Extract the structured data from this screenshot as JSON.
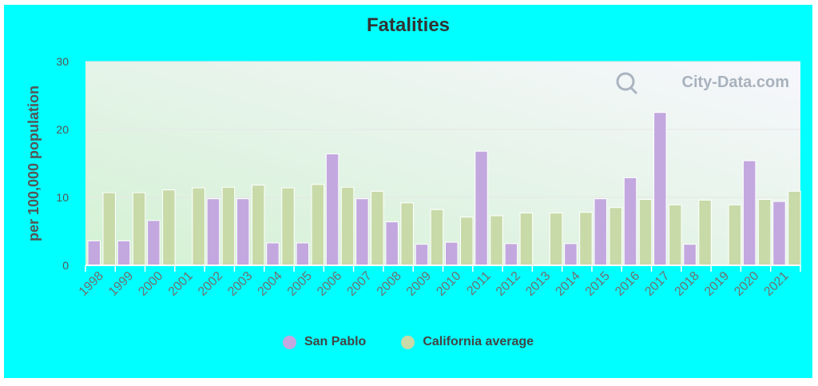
{
  "title": "Fatalities",
  "watermark": "City-Data.com",
  "colors": {
    "san_pablo": "#c3a8df",
    "california": "#c8daa8",
    "frame": "#00ffff"
  },
  "chart_data": {
    "type": "bar",
    "title": "Fatalities",
    "xlabel": "",
    "ylabel": "per 100,000 population",
    "ylim": [
      0,
      30
    ],
    "yticks": [
      0,
      10,
      20,
      30
    ],
    "grid": true,
    "legend_position": "bottom",
    "categories": [
      "1998",
      "1999",
      "2000",
      "2001",
      "2002",
      "2003",
      "2004",
      "2005",
      "2006",
      "2007",
      "2008",
      "2009",
      "2010",
      "2011",
      "2012",
      "2013",
      "2014",
      "2015",
      "2016",
      "2017",
      "2018",
      "2019",
      "2020",
      "2021"
    ],
    "series": [
      {
        "name": "San Pablo",
        "values": [
          3.6,
          3.6,
          6.6,
          null,
          9.8,
          9.8,
          3.3,
          3.3,
          16.4,
          9.8,
          6.4,
          3.1,
          3.4,
          16.8,
          3.2,
          null,
          3.2,
          9.8,
          12.9,
          22.5,
          3.1,
          null,
          15.4,
          9.4
        ]
      },
      {
        "name": "California average",
        "values": [
          10.7,
          10.7,
          11.1,
          11.4,
          11.5,
          11.8,
          11.4,
          11.9,
          11.5,
          10.9,
          9.2,
          8.2,
          7.1,
          7.3,
          7.7,
          7.7,
          7.8,
          8.5,
          9.7,
          8.9,
          9.6,
          8.9,
          9.7,
          10.9
        ]
      }
    ]
  }
}
